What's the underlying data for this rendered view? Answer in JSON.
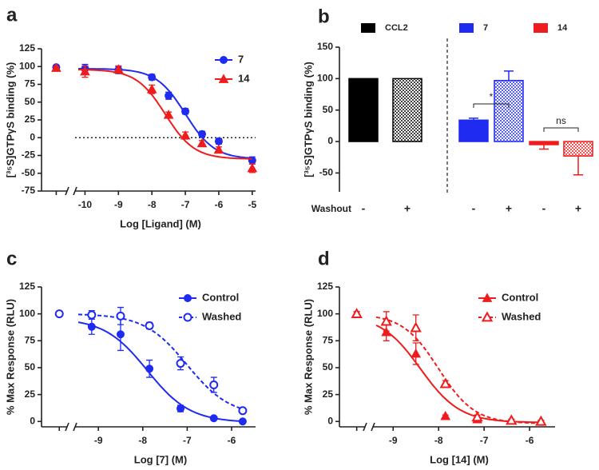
{
  "chart_data": [
    {
      "type": "scatter",
      "label": "a",
      "y_label": "[³⁵S]GTPγS binding (%)",
      "x_label": "Log [Ligand] (M)",
      "xlim": [
        -11.3,
        -4.9
      ],
      "xticks": [
        -10,
        -9,
        -8,
        -7,
        -6,
        -5
      ],
      "ylim": [
        -75,
        125
      ],
      "yticks": [
        -75,
        -50,
        -25,
        0,
        25,
        50,
        75,
        100,
        125
      ],
      "zero_line": true,
      "legend": "upper right",
      "series": [
        {
          "name": "7",
          "color": "#1f2bf0",
          "marker": "circle",
          "filled": true,
          "dashed": false,
          "x": [
            -10.86,
            -10,
            -9,
            -8,
            -7.5,
            -7,
            -6.5,
            -6,
            -5
          ],
          "values": [
            99,
            97,
            95,
            85,
            59,
            37,
            5,
            -5,
            -32
          ],
          "errors": [
            2,
            6,
            5,
            4,
            5,
            4,
            4,
            4,
            5
          ],
          "fit": {
            "top": 97,
            "bottom": -30,
            "log_ic50": -7.0,
            "hill": 1.0
          }
        },
        {
          "name": "14",
          "color": "#ee1c1c",
          "marker": "triangle",
          "filled": true,
          "dashed": false,
          "x": [
            -10.86,
            -10,
            -9,
            -8,
            -7.5,
            -7,
            -6.5,
            -6,
            -5
          ],
          "values": [
            98,
            93,
            96,
            68,
            32,
            3,
            -8,
            -17,
            -43
          ],
          "errors": [
            2,
            8,
            5,
            6,
            4,
            5,
            4,
            4,
            6
          ],
          "fit": {
            "top": 96,
            "bottom": -30,
            "log_ic50": -7.6,
            "hill": 1.0
          }
        }
      ]
    },
    {
      "type": "bar",
      "label": "b",
      "y_label": "[³⁵S]GTPγS binding (%)",
      "x_label": "Washout",
      "categories": [
        "-",
        "+"
      ],
      "ylim": [
        -80,
        150
      ],
      "yticks": [
        -50,
        0,
        50,
        100,
        150
      ],
      "legend": "top",
      "annotations": [
        "*",
        "ns"
      ],
      "series": [
        {
          "name": "CCL2",
          "color": "#000000",
          "hatch": [
            false,
            true
          ],
          "values": [
            100,
            100
          ],
          "errors": [
            null,
            null
          ]
        },
        {
          "name": "7",
          "color": "#1f2bf0",
          "hatch": [
            false,
            true
          ],
          "values": [
            34,
            97
          ],
          "errors": [
            3,
            15
          ]
        },
        {
          "name": "14",
          "color": "#ee1c1c",
          "hatch": [
            false,
            true
          ],
          "values": [
            -5,
            -23
          ],
          "errors": [
            7,
            30
          ]
        }
      ]
    },
    {
      "type": "scatter",
      "label": "c",
      "y_label": "% Max Response (RLU)",
      "x_label": "Log [7] (M)",
      "xlim": [
        -10.28,
        -5.46
      ],
      "xticks": [
        -9,
        -8,
        -7,
        -6
      ],
      "ylim": [
        -5,
        125
      ],
      "yticks": [
        0,
        25,
        50,
        75,
        100,
        125
      ],
      "zero_line": false,
      "legend": "upper right",
      "series": [
        {
          "name": "Control",
          "color": "#1f2bf0",
          "marker": "circle",
          "filled": true,
          "dashed": false,
          "x": [
            -9.88,
            -9.15,
            -8.5,
            -7.85,
            -7.15,
            -6.4,
            -5.75
          ],
          "values": [
            100,
            88,
            81,
            49,
            12,
            3,
            0
          ],
          "errors": [
            2,
            7,
            15,
            8,
            3,
            1,
            1
          ],
          "fit": {
            "top": 96,
            "bottom": -1,
            "log_ic50": -7.9,
            "hill": 0.9
          }
        },
        {
          "name": "Washed",
          "color": "#1f2bf0",
          "marker": "circle",
          "filled": false,
          "dashed": true,
          "x": [
            -9.88,
            -9.15,
            -8.5,
            -7.85,
            -7.15,
            -6.4,
            -5.75
          ],
          "values": [
            100,
            99,
            98,
            89,
            54,
            34,
            10
          ],
          "errors": [
            2,
            4,
            8,
            3,
            6,
            7,
            2
          ],
          "fit": {
            "top": 100,
            "bottom": 5,
            "log_ic50": -7.0,
            "hill": 0.9
          }
        }
      ]
    },
    {
      "type": "scatter",
      "label": "d",
      "y_label": "% Max Response (RLU)",
      "x_label": "Log [14] (M)",
      "xlim": [
        -10.18,
        -5.44
      ],
      "xticks": [
        -9,
        -8,
        -7,
        -6
      ],
      "ylim": [
        -5,
        125
      ],
      "yticks": [
        0,
        25,
        50,
        75,
        100,
        125
      ],
      "zero_line": false,
      "legend": "upper right",
      "series": [
        {
          "name": "Control",
          "color": "#ee1c1c",
          "marker": "triangle",
          "filled": true,
          "dashed": false,
          "x": [
            -9.8,
            -9.15,
            -8.5,
            -7.85,
            -7.15,
            -6.4,
            -5.75
          ],
          "values": [
            100,
            83,
            63,
            5,
            2,
            1,
            0
          ],
          "errors": [
            2,
            8,
            10,
            1,
            1,
            1,
            1
          ],
          "fit": {
            "top": 99,
            "bottom": -1,
            "log_ic50": -8.4,
            "hill": 1.0
          }
        },
        {
          "name": "Washed",
          "color": "#ee1c1c",
          "marker": "triangle",
          "filled": false,
          "dashed": true,
          "x": [
            -9.8,
            -9.15,
            -8.5,
            -7.85,
            -7.15,
            -6.4,
            -5.75
          ],
          "values": [
            100,
            93,
            87,
            35,
            4,
            1,
            0
          ],
          "errors": [
            2,
            9,
            12,
            3,
            2,
            1,
            1
          ],
          "fit": {
            "top": 100,
            "bottom": -2,
            "log_ic50": -8.0,
            "hill": 1.1
          }
        }
      ]
    }
  ]
}
